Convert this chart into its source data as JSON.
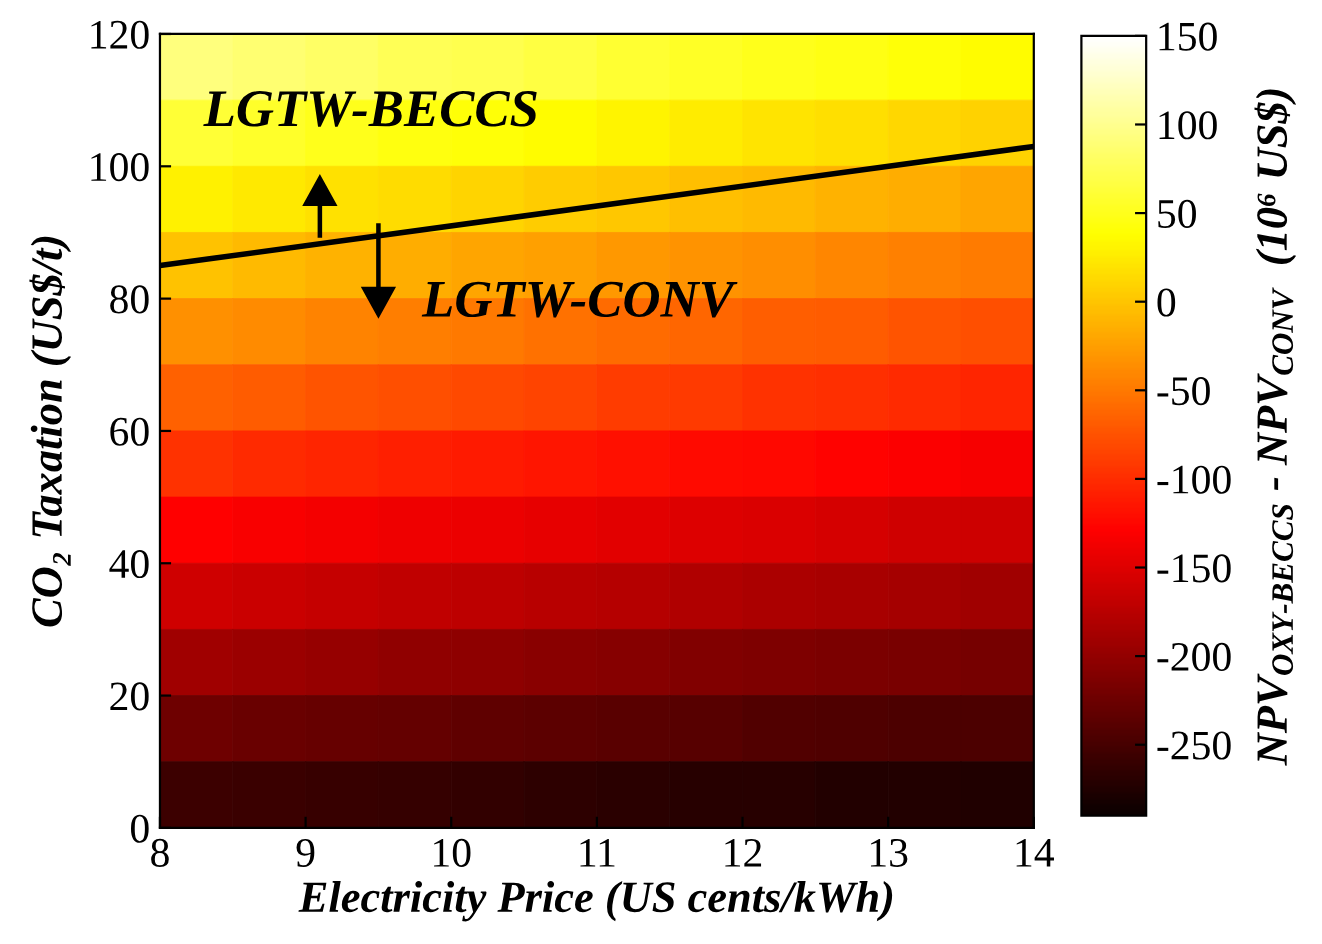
{
  "chart_data": {
    "type": "heatmap",
    "xlabel": "Electricity Price (US cents/kWh)",
    "ylabel": "CO₂ Taxation (US$/t)",
    "clabel": "NPV$_{OXY-BECCS}$ - NPV$_{CONV}$  (10⁶ US$)",
    "xlim": [
      8,
      14
    ],
    "xticks": [
      8,
      9,
      10,
      11,
      12,
      13,
      14
    ],
    "ylim": [
      0,
      120
    ],
    "yticks": [
      0,
      20,
      40,
      60,
      80,
      100,
      120
    ],
    "cells": [
      [
        93,
        87,
        82,
        76,
        71,
        66,
        60,
        55,
        50,
        46,
        41,
        36
      ],
      [
        61,
        56,
        50,
        45,
        40,
        35,
        31,
        26,
        21,
        17,
        12,
        8
      ],
      [
        29,
        24,
        19,
        15,
        10,
        5,
        1,
        -4,
        -8,
        -12,
        -16,
        -21
      ],
      [
        -2,
        -7,
        -12,
        -16,
        -21,
        -25,
        -29,
        -33,
        -37,
        -41,
        -45,
        -49
      ],
      [
        -34,
        -38,
        -43,
        -47,
        -51,
        -55,
        -59,
        -63,
        -67,
        -70,
        -74,
        -77
      ],
      [
        -66,
        -70,
        -74,
        -78,
        -81,
        -85,
        -89,
        -92,
        -96,
        -99,
        -102,
        -106
      ],
      [
        -97,
        -101,
        -105,
        -108,
        -112,
        -115,
        -119,
        -122,
        -125,
        -128,
        -131,
        -134
      ],
      [
        -129,
        -132,
        -136,
        -139,
        -142,
        -145,
        -149,
        -151,
        -154,
        -157,
        -160,
        -162
      ],
      [
        -161,
        -164,
        -167,
        -170,
        -173,
        -176,
        -178,
        -181,
        -184,
        -186,
        -188,
        -191
      ],
      [
        -192,
        -195,
        -198,
        -201,
        -203,
        -206,
        -208,
        -211,
        -213,
        -215,
        -217,
        -219
      ],
      [
        -224,
        -227,
        -229,
        -231,
        -234,
        -236,
        -238,
        -240,
        -242,
        -244,
        -246,
        -247
      ],
      [
        -256,
        -258,
        -260,
        -262,
        -264,
        -266,
        -268,
        -270,
        -271,
        -273,
        -274,
        -276
      ]
    ],
    "clim": [
      -290,
      150
    ],
    "cticks": [
      -250,
      -200,
      -150,
      -100,
      -50,
      0,
      50,
      100,
      150
    ],
    "series": [
      {
        "type": "line",
        "color": "#000000",
        "x": [
          8,
          14
        ],
        "values": [
          85,
          103
        ]
      }
    ],
    "annotations": [
      "LGTW-BECCS",
      "LGTW-CONV"
    ]
  }
}
